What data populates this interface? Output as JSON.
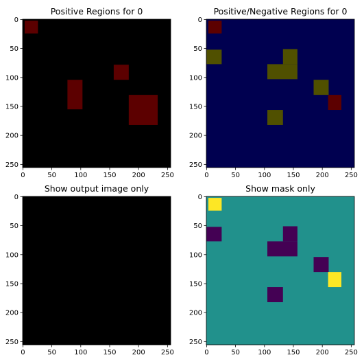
{
  "chart_data": [
    {
      "type": "image",
      "title": "Positive Regions for 0",
      "background": "#000000",
      "xlim": [
        -0.5,
        255.5
      ],
      "ylim": [
        255.5,
        -0.5
      ],
      "xticks": [
        0,
        50,
        100,
        150,
        200,
        250
      ],
      "yticks": [
        0,
        50,
        100,
        150,
        200,
        250
      ],
      "regions": [
        {
          "x": [
            3,
            26
          ],
          "y": [
            2,
            24
          ],
          "color": "#5c0000"
        },
        {
          "x": [
            157,
            183
          ],
          "y": [
            78,
            104
          ],
          "color": "#5c0000"
        },
        {
          "x": [
            77,
            103
          ],
          "y": [
            104,
            155
          ],
          "color": "#5c0000"
        },
        {
          "x": [
            183,
            233
          ],
          "y": [
            130,
            182
          ],
          "color": "#5c0000"
        }
      ]
    },
    {
      "type": "image",
      "title": "Positive/Negative Regions for 0",
      "background": "#000050",
      "xlim": [
        -0.5,
        255.5
      ],
      "ylim": [
        255.5,
        -0.5
      ],
      "xticks": [
        0,
        50,
        100,
        150,
        200,
        250
      ],
      "yticks": [
        0,
        50,
        100,
        150,
        200,
        250
      ],
      "regions": [
        {
          "x": [
            3,
            26
          ],
          "y": [
            2,
            24
          ],
          "color": "#5c0000"
        },
        {
          "x": [
            0,
            26
          ],
          "y": [
            52,
            77
          ],
          "color": "#505000"
        },
        {
          "x": [
            132,
            157
          ],
          "y": [
            51,
            77
          ],
          "color": "#505000"
        },
        {
          "x": [
            105,
            157
          ],
          "y": [
            77,
            103
          ],
          "color": "#505000"
        },
        {
          "x": [
            185,
            211
          ],
          "y": [
            104,
            130
          ],
          "color": "#505000"
        },
        {
          "x": [
            210,
            233
          ],
          "y": [
            130,
            156
          ],
          "color": "#5c0000"
        },
        {
          "x": [
            105,
            132
          ],
          "y": [
            156,
            182
          ],
          "color": "#505000"
        }
      ]
    },
    {
      "type": "image",
      "title": "Show output image only",
      "background": "#000000",
      "xlim": [
        -0.5,
        255.5
      ],
      "ylim": [
        255.5,
        -0.5
      ],
      "xticks": [
        0,
        50,
        100,
        150,
        200,
        250
      ],
      "yticks": [
        0,
        50,
        100,
        150,
        200,
        250
      ],
      "regions": []
    },
    {
      "type": "image",
      "title": "Show mask only",
      "background": "#21918c",
      "xlim": [
        -0.5,
        255.5
      ],
      "ylim": [
        255.5,
        -0.5
      ],
      "xticks": [
        0,
        50,
        100,
        150,
        200,
        250
      ],
      "yticks": [
        0,
        50,
        100,
        150,
        200,
        250
      ],
      "regions": [
        {
          "x": [
            3,
            26
          ],
          "y": [
            2,
            24
          ],
          "color": "#fde725"
        },
        {
          "x": [
            0,
            26
          ],
          "y": [
            52,
            77
          ],
          "color": "#440154"
        },
        {
          "x": [
            132,
            157
          ],
          "y": [
            51,
            77
          ],
          "color": "#440154"
        },
        {
          "x": [
            105,
            157
          ],
          "y": [
            77,
            103
          ],
          "color": "#440154"
        },
        {
          "x": [
            185,
            211
          ],
          "y": [
            104,
            130
          ],
          "color": "#440154"
        },
        {
          "x": [
            210,
            233
          ],
          "y": [
            130,
            156
          ],
          "color": "#fde725"
        },
        {
          "x": [
            105,
            132
          ],
          "y": [
            156,
            182
          ],
          "color": "#440154"
        }
      ]
    }
  ]
}
